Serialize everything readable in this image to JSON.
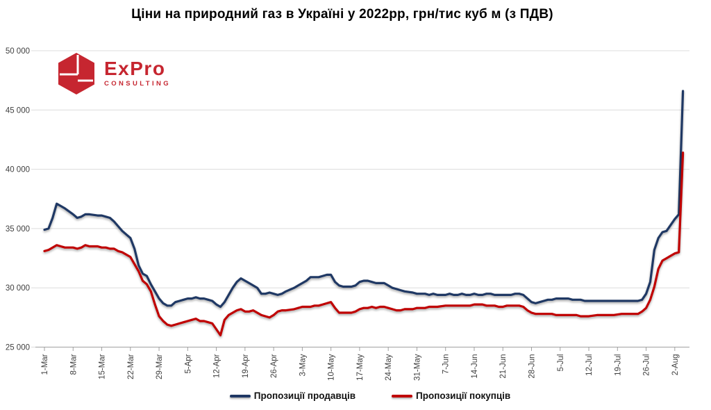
{
  "title": "Ціни на природний газ в Україні у 2022рр, грн/тис куб м (з ПДВ)",
  "logo": {
    "name": "ExPro",
    "subtitle": "CONSULTING",
    "color": "#c62630"
  },
  "legend": {
    "sellers_label": "Пропозиції продавців",
    "buyers_label": "Пропозиції покупців"
  },
  "colors": {
    "sellers": "#1f3864",
    "buyers": "#c00000",
    "grid": "#dcdcdc",
    "axis": "#a0a0a0",
    "label": "#3f3f3f"
  },
  "chart_data": {
    "type": "line",
    "title": "Ціни на природний газ в Україні у 2022рр, грн/тис куб м (з ПДВ)",
    "xlabel": "",
    "ylabel": "грн/тис куб м (з ПДВ)",
    "grid": "horizontal",
    "legend_position": "bottom",
    "y_axis": {
      "min": 25000,
      "max": 50000,
      "step": 5000,
      "tick_labels": [
        "25 000",
        "30 000",
        "35 000",
        "40 000",
        "45 000",
        "50 000"
      ]
    },
    "x_axis": {
      "unit": "days since 1-Mar-2022",
      "tick_day_offsets": [
        0,
        7,
        14,
        21,
        28,
        35,
        42,
        49,
        56,
        63,
        70,
        77,
        84,
        91,
        98,
        105,
        112,
        119,
        126,
        133,
        140,
        147,
        154
      ],
      "tick_labels": [
        "1-Mar",
        "8-Mar",
        "15-Mar",
        "22-Mar",
        "29-Mar",
        "5-Apr",
        "12-Apr",
        "19-Apr",
        "26-Apr",
        "3-May",
        "10-May",
        "17-May",
        "24-May",
        "31-May",
        "7-Jun",
        "14-Jun",
        "21-Jun",
        "28-Jun",
        "5-Jul",
        "12-Jul",
        "19-Jul",
        "26-Jul",
        "2-Aug"
      ],
      "data_day_range": [
        0,
        156
      ]
    },
    "series": [
      {
        "name": "Пропозиції продавців",
        "color": "#1f3864",
        "points": [
          [
            0,
            34900
          ],
          [
            1,
            35000
          ],
          [
            2,
            35900
          ],
          [
            3,
            37100
          ],
          [
            4,
            36900
          ],
          [
            5,
            36700
          ],
          [
            7,
            36200
          ],
          [
            8,
            35900
          ],
          [
            9,
            36000
          ],
          [
            10,
            36200
          ],
          [
            11,
            36200
          ],
          [
            13,
            36100
          ],
          [
            14,
            36100
          ],
          [
            15,
            36000
          ],
          [
            16,
            35900
          ],
          [
            17,
            35600
          ],
          [
            18,
            35200
          ],
          [
            19,
            34800
          ],
          [
            20,
            34500
          ],
          [
            21,
            34200
          ],
          [
            22,
            33300
          ],
          [
            23,
            31900
          ],
          [
            24,
            31200
          ],
          [
            25,
            31000
          ],
          [
            26,
            30300
          ],
          [
            27,
            29700
          ],
          [
            28,
            29100
          ],
          [
            29,
            28700
          ],
          [
            30,
            28500
          ],
          [
            31,
            28500
          ],
          [
            32,
            28800
          ],
          [
            33,
            28900
          ],
          [
            34,
            29000
          ],
          [
            35,
            29100
          ],
          [
            36,
            29100
          ],
          [
            37,
            29200
          ],
          [
            38,
            29100
          ],
          [
            39,
            29100
          ],
          [
            40,
            29000
          ],
          [
            41,
            28900
          ],
          [
            42,
            28600
          ],
          [
            43,
            28400
          ],
          [
            44,
            28800
          ],
          [
            45,
            29400
          ],
          [
            46,
            30000
          ],
          [
            47,
            30500
          ],
          [
            48,
            30800
          ],
          [
            49,
            30600
          ],
          [
            50,
            30400
          ],
          [
            51,
            30200
          ],
          [
            52,
            30000
          ],
          [
            53,
            29500
          ],
          [
            54,
            29500
          ],
          [
            55,
            29600
          ],
          [
            56,
            29500
          ],
          [
            57,
            29400
          ],
          [
            58,
            29500
          ],
          [
            59,
            29700
          ],
          [
            61,
            30000
          ],
          [
            62,
            30200
          ],
          [
            63,
            30400
          ],
          [
            64,
            30600
          ],
          [
            65,
            30900
          ],
          [
            66,
            30900
          ],
          [
            67,
            30900
          ],
          [
            68,
            31000
          ],
          [
            69,
            31100
          ],
          [
            70,
            31100
          ],
          [
            71,
            30500
          ],
          [
            72,
            30200
          ],
          [
            73,
            30100
          ],
          [
            74,
            30100
          ],
          [
            75,
            30100
          ],
          [
            76,
            30200
          ],
          [
            77,
            30500
          ],
          [
            78,
            30600
          ],
          [
            79,
            30600
          ],
          [
            80,
            30500
          ],
          [
            81,
            30400
          ],
          [
            82,
            30400
          ],
          [
            83,
            30400
          ],
          [
            84,
            30200
          ],
          [
            85,
            30000
          ],
          [
            86,
            29900
          ],
          [
            87,
            29800
          ],
          [
            88,
            29700
          ],
          [
            90,
            29600
          ],
          [
            91,
            29500
          ],
          [
            92,
            29500
          ],
          [
            93,
            29500
          ],
          [
            94,
            29400
          ],
          [
            95,
            29500
          ],
          [
            96,
            29400
          ],
          [
            98,
            29400
          ],
          [
            99,
            29500
          ],
          [
            100,
            29400
          ],
          [
            101,
            29400
          ],
          [
            102,
            29500
          ],
          [
            103,
            29400
          ],
          [
            104,
            29400
          ],
          [
            105,
            29500
          ],
          [
            106,
            29400
          ],
          [
            107,
            29400
          ],
          [
            108,
            29500
          ],
          [
            109,
            29500
          ],
          [
            110,
            29400
          ],
          [
            111,
            29400
          ],
          [
            112,
            29400
          ],
          [
            113,
            29400
          ],
          [
            114,
            29400
          ],
          [
            115,
            29500
          ],
          [
            116,
            29500
          ],
          [
            117,
            29400
          ],
          [
            118,
            29100
          ],
          [
            119,
            28800
          ],
          [
            120,
            28700
          ],
          [
            121,
            28800
          ],
          [
            122,
            28900
          ],
          [
            123,
            29000
          ],
          [
            124,
            29000
          ],
          [
            125,
            29100
          ],
          [
            126,
            29100
          ],
          [
            127,
            29100
          ],
          [
            128,
            29100
          ],
          [
            129,
            29000
          ],
          [
            130,
            29000
          ],
          [
            131,
            29000
          ],
          [
            132,
            28900
          ],
          [
            133,
            28900
          ],
          [
            135,
            28900
          ],
          [
            137,
            28900
          ],
          [
            139,
            28900
          ],
          [
            141,
            28900
          ],
          [
            143,
            28900
          ],
          [
            145,
            28900
          ],
          [
            146,
            29000
          ],
          [
            147,
            29500
          ],
          [
            148,
            30500
          ],
          [
            149,
            33200
          ],
          [
            150,
            34200
          ],
          [
            151,
            34700
          ],
          [
            152,
            34800
          ],
          [
            153,
            35300
          ],
          [
            154,
            35800
          ],
          [
            155,
            36200
          ],
          [
            156,
            46600
          ]
        ]
      },
      {
        "name": "Пропозиції покупців",
        "color": "#c00000",
        "points": [
          [
            0,
            33100
          ],
          [
            1,
            33200
          ],
          [
            2,
            33400
          ],
          [
            3,
            33600
          ],
          [
            4,
            33500
          ],
          [
            5,
            33400
          ],
          [
            7,
            33400
          ],
          [
            8,
            33300
          ],
          [
            9,
            33400
          ],
          [
            10,
            33600
          ],
          [
            11,
            33500
          ],
          [
            13,
            33500
          ],
          [
            14,
            33400
          ],
          [
            15,
            33400
          ],
          [
            16,
            33300
          ],
          [
            17,
            33300
          ],
          [
            18,
            33100
          ],
          [
            19,
            33000
          ],
          [
            20,
            32800
          ],
          [
            21,
            32600
          ],
          [
            22,
            32000
          ],
          [
            23,
            31400
          ],
          [
            24,
            30600
          ],
          [
            25,
            30300
          ],
          [
            26,
            29700
          ],
          [
            27,
            28600
          ],
          [
            28,
            27600
          ],
          [
            29,
            27200
          ],
          [
            30,
            26900
          ],
          [
            31,
            26800
          ],
          [
            32,
            26900
          ],
          [
            33,
            27000
          ],
          [
            34,
            27100
          ],
          [
            35,
            27200
          ],
          [
            36,
            27300
          ],
          [
            37,
            27400
          ],
          [
            38,
            27200
          ],
          [
            39,
            27200
          ],
          [
            40,
            27100
          ],
          [
            41,
            27000
          ],
          [
            42,
            26500
          ],
          [
            43,
            26000
          ],
          [
            44,
            27300
          ],
          [
            45,
            27700
          ],
          [
            46,
            27900
          ],
          [
            47,
            28100
          ],
          [
            48,
            28200
          ],
          [
            49,
            28000
          ],
          [
            50,
            28000
          ],
          [
            51,
            28100
          ],
          [
            52,
            27900
          ],
          [
            53,
            27700
          ],
          [
            54,
            27600
          ],
          [
            55,
            27500
          ],
          [
            56,
            27700
          ],
          [
            57,
            28000
          ],
          [
            58,
            28100
          ],
          [
            59,
            28100
          ],
          [
            61,
            28200
          ],
          [
            62,
            28300
          ],
          [
            63,
            28400
          ],
          [
            64,
            28400
          ],
          [
            65,
            28400
          ],
          [
            66,
            28500
          ],
          [
            67,
            28500
          ],
          [
            68,
            28600
          ],
          [
            69,
            28700
          ],
          [
            70,
            28800
          ],
          [
            71,
            28300
          ],
          [
            72,
            27900
          ],
          [
            73,
            27900
          ],
          [
            74,
            27900
          ],
          [
            75,
            27900
          ],
          [
            76,
            28000
          ],
          [
            77,
            28200
          ],
          [
            78,
            28300
          ],
          [
            79,
            28300
          ],
          [
            80,
            28400
          ],
          [
            81,
            28300
          ],
          [
            82,
            28400
          ],
          [
            83,
            28400
          ],
          [
            84,
            28300
          ],
          [
            85,
            28200
          ],
          [
            86,
            28100
          ],
          [
            87,
            28100
          ],
          [
            88,
            28200
          ],
          [
            90,
            28200
          ],
          [
            91,
            28300
          ],
          [
            92,
            28300
          ],
          [
            93,
            28300
          ],
          [
            94,
            28400
          ],
          [
            95,
            28400
          ],
          [
            96,
            28400
          ],
          [
            98,
            28500
          ],
          [
            99,
            28500
          ],
          [
            100,
            28500
          ],
          [
            101,
            28500
          ],
          [
            102,
            28500
          ],
          [
            103,
            28500
          ],
          [
            104,
            28500
          ],
          [
            105,
            28600
          ],
          [
            106,
            28600
          ],
          [
            107,
            28600
          ],
          [
            108,
            28500
          ],
          [
            109,
            28500
          ],
          [
            110,
            28500
          ],
          [
            111,
            28400
          ],
          [
            112,
            28400
          ],
          [
            113,
            28500
          ],
          [
            114,
            28500
          ],
          [
            115,
            28500
          ],
          [
            116,
            28500
          ],
          [
            117,
            28400
          ],
          [
            118,
            28100
          ],
          [
            119,
            27900
          ],
          [
            120,
            27800
          ],
          [
            121,
            27800
          ],
          [
            122,
            27800
          ],
          [
            123,
            27800
          ],
          [
            124,
            27800
          ],
          [
            125,
            27700
          ],
          [
            126,
            27700
          ],
          [
            127,
            27700
          ],
          [
            128,
            27700
          ],
          [
            129,
            27700
          ],
          [
            130,
            27700
          ],
          [
            131,
            27600
          ],
          [
            132,
            27600
          ],
          [
            133,
            27600
          ],
          [
            135,
            27700
          ],
          [
            137,
            27700
          ],
          [
            139,
            27700
          ],
          [
            141,
            27800
          ],
          [
            143,
            27800
          ],
          [
            145,
            27800
          ],
          [
            146,
            28000
          ],
          [
            147,
            28300
          ],
          [
            148,
            29000
          ],
          [
            149,
            30100
          ],
          [
            150,
            31600
          ],
          [
            151,
            32300
          ],
          [
            152,
            32500
          ],
          [
            153,
            32700
          ],
          [
            154,
            32900
          ],
          [
            155,
            33000
          ],
          [
            156,
            41400
          ]
        ]
      }
    ]
  }
}
